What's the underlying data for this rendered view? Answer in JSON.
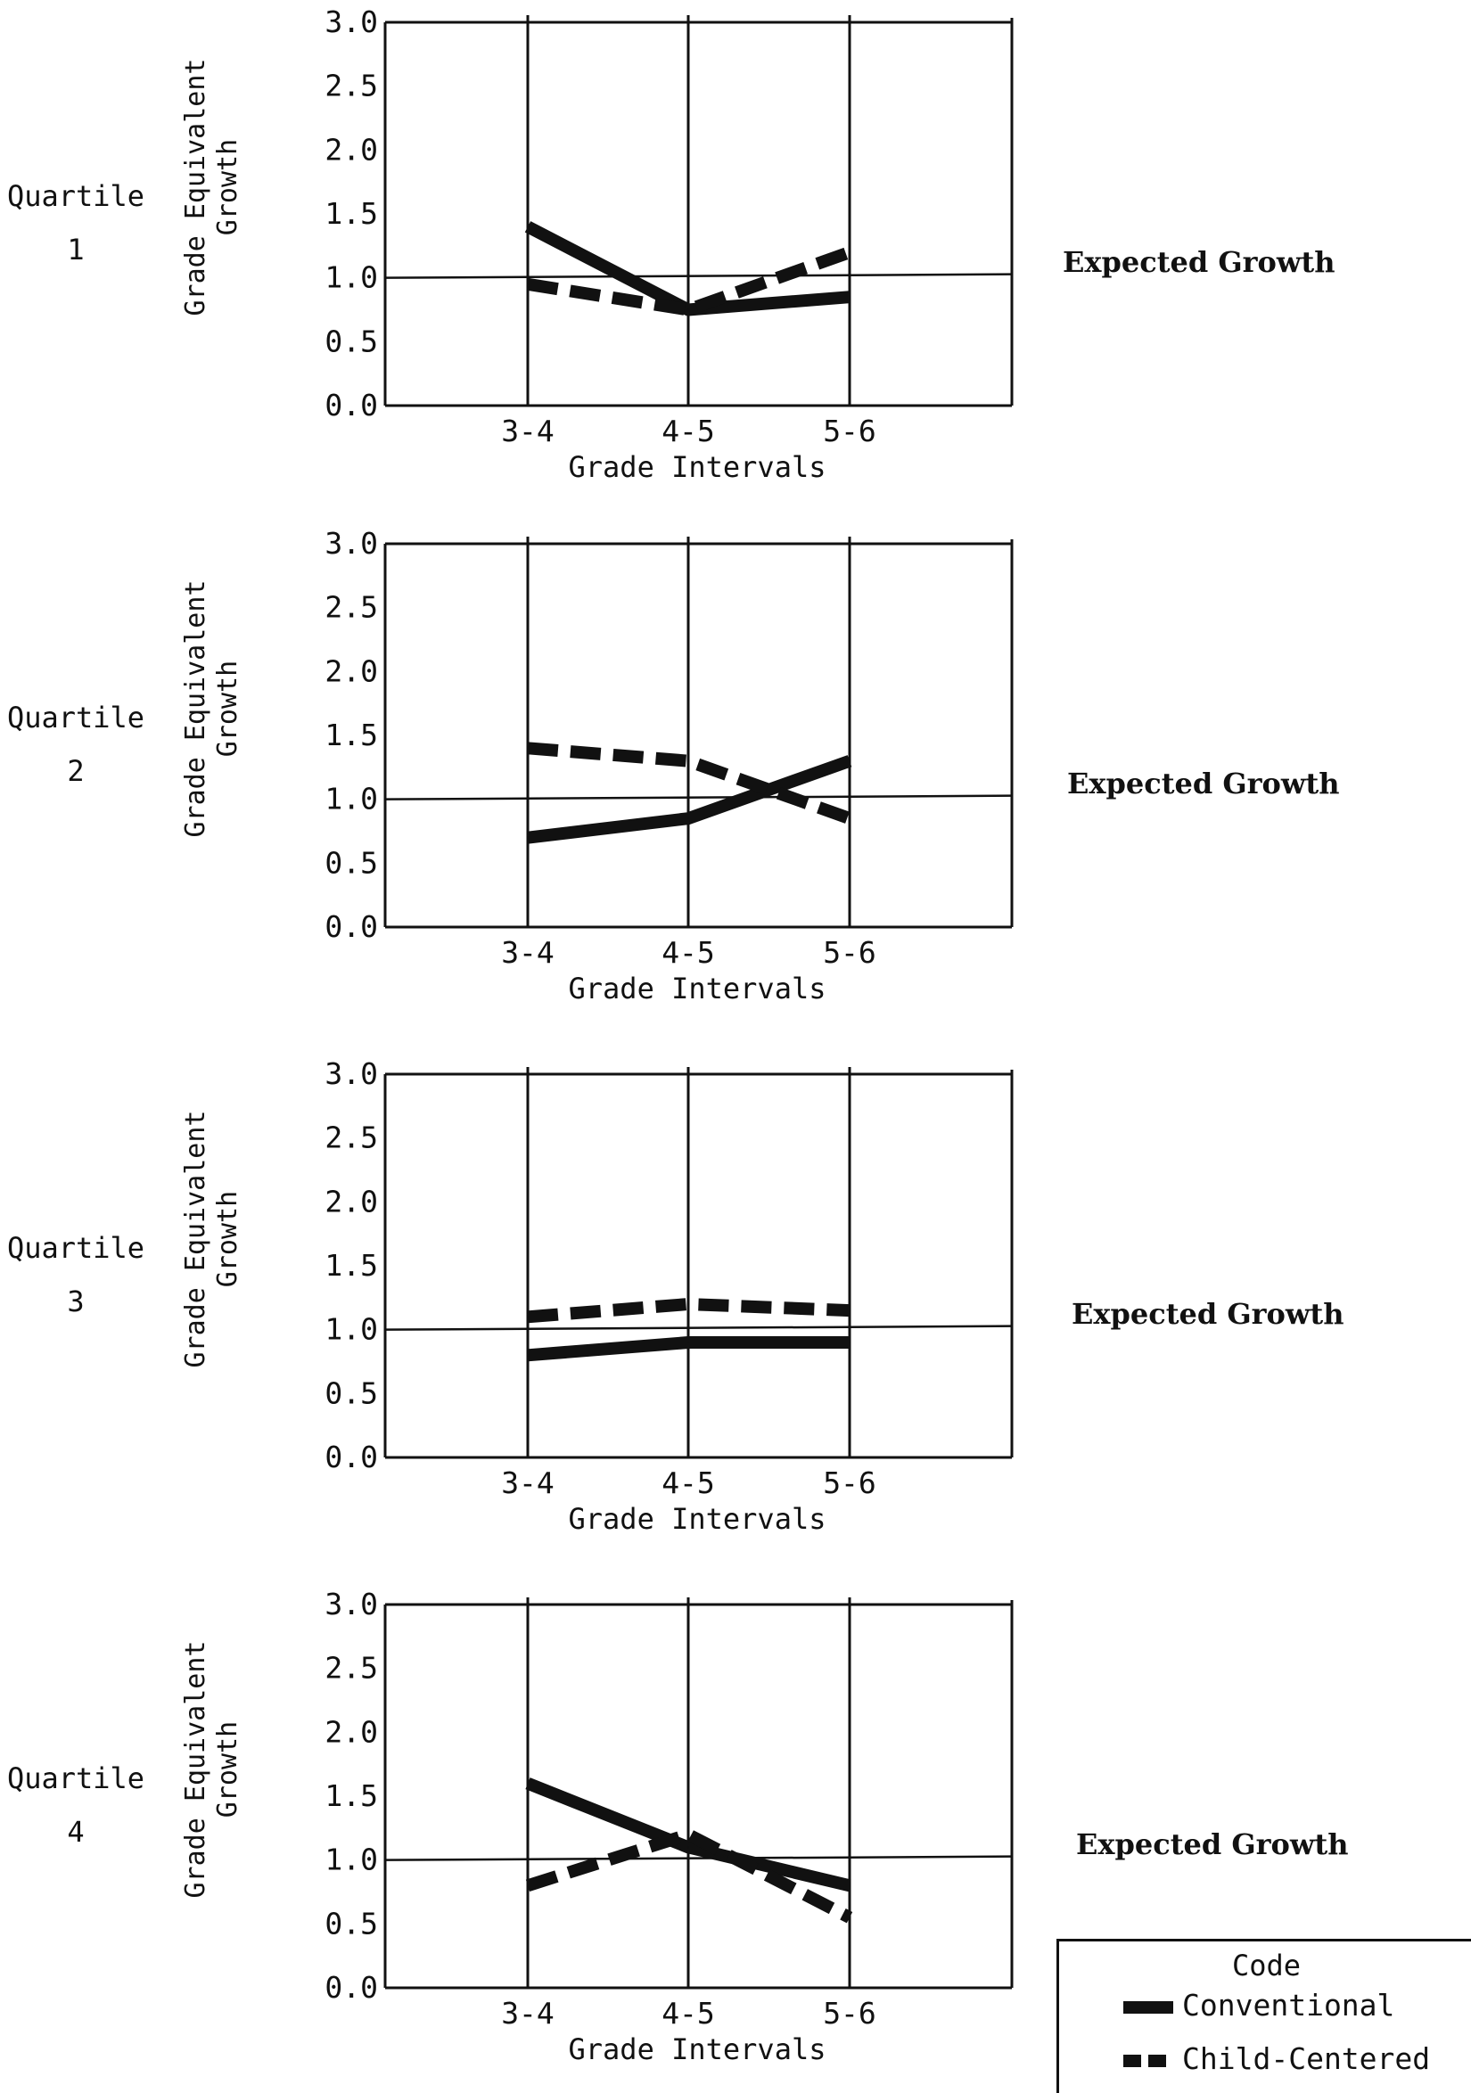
{
  "y_axis_label_line1": "Grade Equivalent",
  "y_axis_label_line2": "Growth",
  "x_axis_label": "Grade Intervals",
  "expected_growth_label": "Expected Growth",
  "legend": {
    "title": "Code",
    "conventional": "Conventional",
    "child_centered": "Child-Centered"
  },
  "chart_data": [
    {
      "type": "line",
      "quartile_label": "Quartile",
      "quartile_number": "1",
      "categories": [
        "3-4",
        "4-5",
        "5-6"
      ],
      "yticks": [
        "0.0",
        "0.5",
        "1.0",
        "1.5",
        "2.0",
        "2.5",
        "3.0"
      ],
      "ylim": [
        0,
        3.0
      ],
      "expected_growth": 1.0,
      "series": [
        {
          "name": "Conventional",
          "style": "solid",
          "values": [
            1.4,
            0.75,
            0.85
          ]
        },
        {
          "name": "Child-Centered",
          "style": "dashed",
          "values": [
            0.95,
            0.75,
            1.2
          ]
        }
      ]
    },
    {
      "type": "line",
      "quartile_label": "Quartile",
      "quartile_number": "2",
      "categories": [
        "3-4",
        "4-5",
        "5-6"
      ],
      "yticks": [
        "0.0",
        "0.5",
        "1.0",
        "1.5",
        "2.0",
        "2.5",
        "3.0"
      ],
      "ylim": [
        0,
        3.0
      ],
      "expected_growth": 1.0,
      "series": [
        {
          "name": "Conventional",
          "style": "solid",
          "values": [
            0.7,
            0.85,
            1.3
          ]
        },
        {
          "name": "Child-Centered",
          "style": "dashed",
          "values": [
            1.4,
            1.3,
            0.85
          ]
        }
      ]
    },
    {
      "type": "line",
      "quartile_label": "Quartile",
      "quartile_number": "3",
      "categories": [
        "3-4",
        "4-5",
        "5-6"
      ],
      "yticks": [
        "0.0",
        "0.5",
        "1.0",
        "1.5",
        "2.0",
        "2.5",
        "3.0"
      ],
      "ylim": [
        0,
        3.0
      ],
      "expected_growth": 1.0,
      "series": [
        {
          "name": "Conventional",
          "style": "solid",
          "values": [
            0.8,
            0.9,
            0.9
          ]
        },
        {
          "name": "Child-Centered",
          "style": "dashed",
          "values": [
            1.1,
            1.2,
            1.15
          ]
        }
      ]
    },
    {
      "type": "line",
      "quartile_label": "Quartile",
      "quartile_number": "4",
      "categories": [
        "3-4",
        "4-5",
        "5-6"
      ],
      "yticks": [
        "0.0",
        "0.5",
        "1.0",
        "1.5",
        "2.0",
        "2.5",
        "3.0"
      ],
      "ylim": [
        0,
        3.0
      ],
      "expected_growth": 1.0,
      "series": [
        {
          "name": "Conventional",
          "style": "solid",
          "values": [
            1.6,
            1.1,
            0.8
          ]
        },
        {
          "name": "Child-Centered",
          "style": "dashed",
          "values": [
            0.8,
            1.2,
            0.55
          ]
        }
      ]
    }
  ]
}
